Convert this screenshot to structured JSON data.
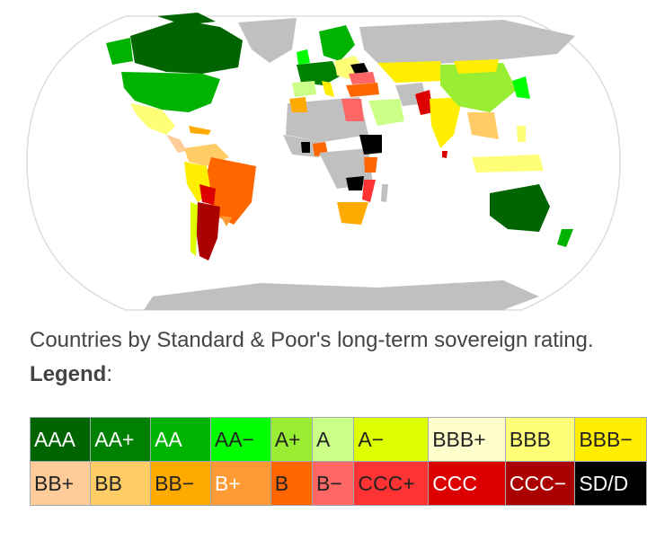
{
  "caption": {
    "text": "Countries by Standard & Poor's long-term sovereign rating. ",
    "legend_word": "Legend",
    "legend_colon": ":"
  },
  "legend": {
    "rows": [
      [
        {
          "label": "AAA",
          "bg": "#006400",
          "fg": "#ffffff"
        },
        {
          "label": "AA+",
          "bg": "#008000",
          "fg": "#ffffff"
        },
        {
          "label": "AA",
          "bg": "#00b300",
          "fg": "#ffffff"
        },
        {
          "label": "AA−",
          "bg": "#00ff00",
          "fg": "#222222"
        },
        {
          "label": "A+",
          "bg": "#99ee33",
          "fg": "#222222"
        },
        {
          "label": "A",
          "bg": "#ccff88",
          "fg": "#222222"
        },
        {
          "label": "A−",
          "bg": "#ddff00",
          "fg": "#222222"
        },
        {
          "label": "BBB+",
          "bg": "#ffffcc",
          "fg": "#222222"
        },
        {
          "label": "BBB",
          "bg": "#ffff77",
          "fg": "#222222"
        },
        {
          "label": "BBB−",
          "bg": "#ffee00",
          "fg": "#222222"
        }
      ],
      [
        {
          "label": "BB+",
          "bg": "#ffcc99",
          "fg": "#222222"
        },
        {
          "label": "BB",
          "bg": "#ffcc66",
          "fg": "#222222"
        },
        {
          "label": "BB−",
          "bg": "#ffaa00",
          "fg": "#222222"
        },
        {
          "label": "B+",
          "bg": "#ff9933",
          "fg": "#ffffff"
        },
        {
          "label": "B",
          "bg": "#ff6600",
          "fg": "#222222"
        },
        {
          "label": "B−",
          "bg": "#ff6666",
          "fg": "#222222"
        },
        {
          "label": "CCC+",
          "bg": "#ff3333",
          "fg": "#222222"
        },
        {
          "label": "CCC",
          "bg": "#dd0000",
          "fg": "#ffffff"
        },
        {
          "label": "CCC−",
          "bg": "#aa0000",
          "fg": "#ffffff"
        },
        {
          "label": "SD/D",
          "bg": "#000000",
          "fg": "#ffffff"
        }
      ]
    ]
  },
  "map_colors": {
    "ocean": "#ffffff",
    "no_rating": "#c0c0c0",
    "outline": "#dddddd"
  }
}
